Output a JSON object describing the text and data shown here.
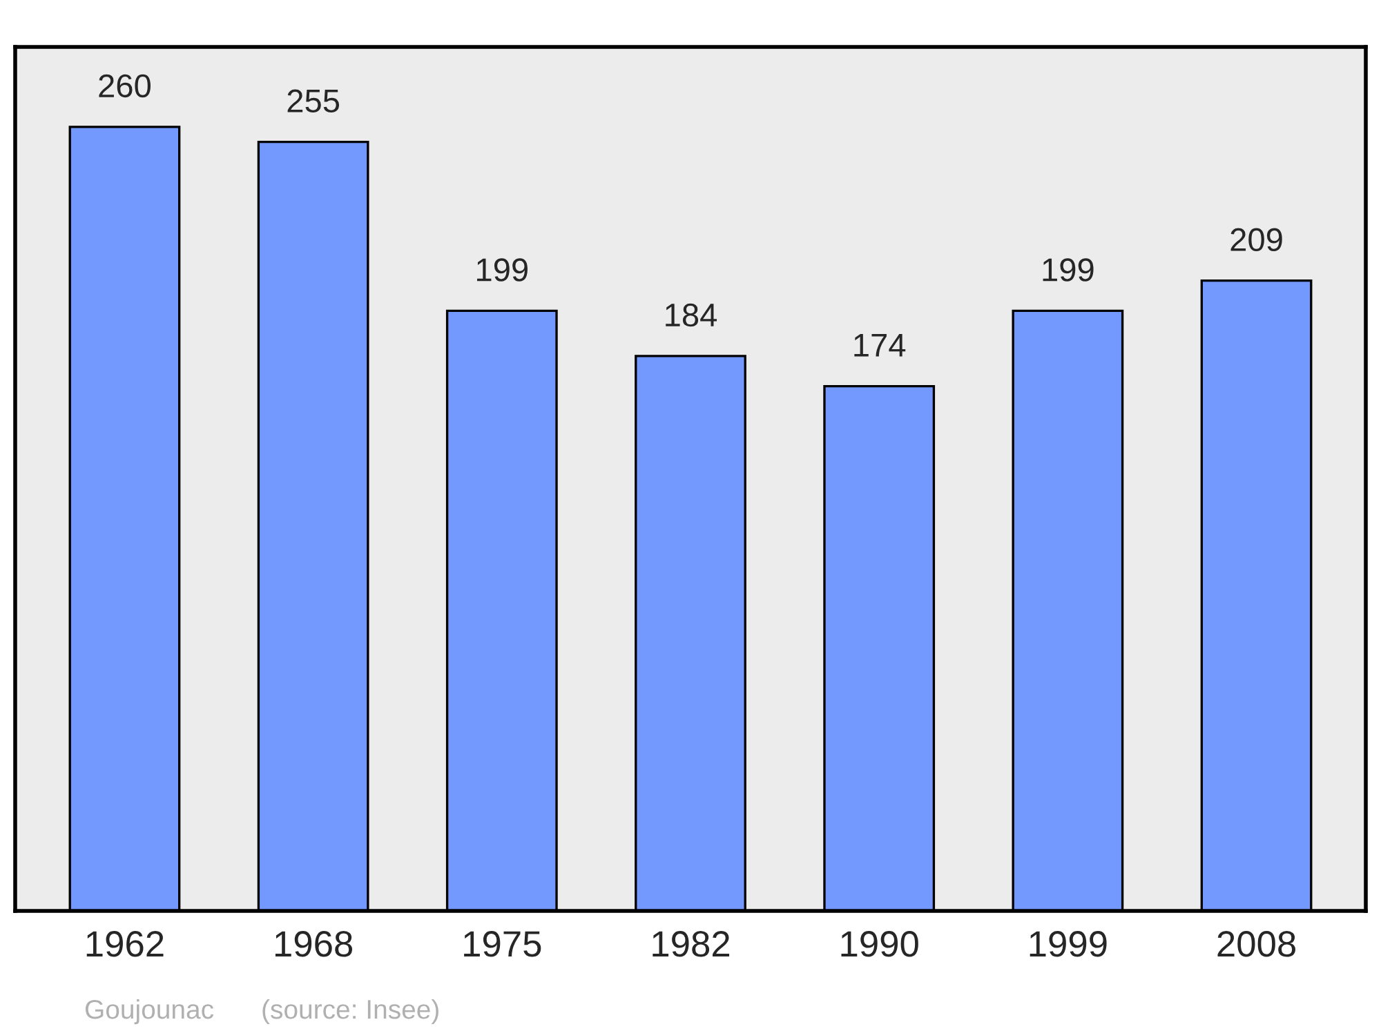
{
  "chart_data": {
    "type": "bar",
    "categories": [
      "1962",
      "1968",
      "1975",
      "1982",
      "1990",
      "1999",
      "2008"
    ],
    "values": [
      260,
      255,
      199,
      184,
      174,
      199,
      209
    ],
    "color": "#7399ff",
    "data_labels": true,
    "grid": false,
    "annotations": [
      "Goujounac",
      "(source: Insee)"
    ]
  }
}
